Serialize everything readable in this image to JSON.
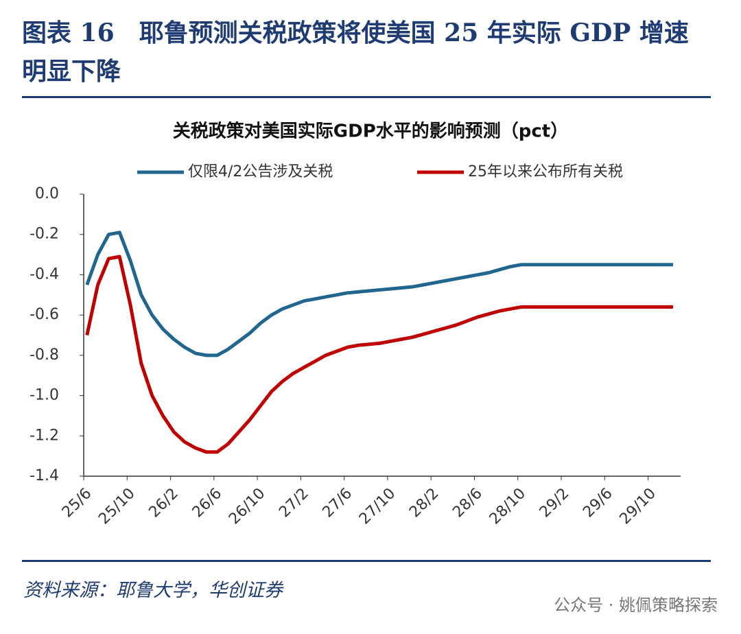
{
  "chart_data": {
    "type": "line",
    "header": "图表 16　耶鲁预测关税政策将使美国 25 年实际 GDP 增速明显下降",
    "title": "关税政策对美国实际GDP水平的影响预测（pct）",
    "source": "资料来源：耶鲁大学，华创证券",
    "watermark": "公众号 · 姚佩策略探索",
    "categories": [
      "25/6",
      null,
      null,
      null,
      "25/10",
      null,
      null,
      null,
      "26/2",
      null,
      null,
      null,
      "26/6",
      null,
      null,
      null,
      "26/10",
      null,
      null,
      null,
      "27/2",
      null,
      null,
      null,
      "27/6",
      null,
      null,
      null,
      "27/10",
      null,
      null,
      null,
      "28/2",
      null,
      null,
      null,
      "28/6",
      null,
      null,
      null,
      "28/10",
      null,
      null,
      null,
      "29/2",
      null,
      null,
      null,
      "29/6",
      null,
      null,
      null,
      "29/10",
      null,
      null
    ],
    "series": [
      {
        "name": "仅限4/2公告涉及关税",
        "color": "#21668f",
        "values": [
          -0.45,
          -0.3,
          -0.2,
          -0.19,
          -0.33,
          -0.5,
          -0.6,
          -0.67,
          -0.72,
          -0.76,
          -0.79,
          -0.8,
          -0.8,
          -0.77,
          -0.73,
          -0.69,
          -0.64,
          -0.6,
          -0.57,
          -0.55,
          -0.53,
          -0.52,
          -0.51,
          -0.5,
          -0.49,
          -0.485,
          -0.48,
          -0.475,
          -0.47,
          -0.465,
          -0.46,
          -0.45,
          -0.44,
          -0.43,
          -0.42,
          -0.41,
          -0.4,
          -0.39,
          -0.375,
          -0.36,
          -0.35,
          -0.35,
          -0.35,
          -0.35,
          -0.35,
          -0.35,
          -0.35,
          -0.35,
          -0.35,
          -0.35,
          -0.35,
          -0.35,
          -0.35,
          -0.35,
          -0.35
        ]
      },
      {
        "name": "25年以来公布所有关税",
        "color": "#c00000",
        "values": [
          -0.7,
          -0.45,
          -0.32,
          -0.31,
          -0.55,
          -0.84,
          -1.0,
          -1.1,
          -1.18,
          -1.23,
          -1.26,
          -1.28,
          -1.28,
          -1.24,
          -1.18,
          -1.12,
          -1.05,
          -0.98,
          -0.93,
          -0.89,
          -0.86,
          -0.83,
          -0.8,
          -0.78,
          -0.76,
          -0.75,
          -0.745,
          -0.74,
          -0.73,
          -0.72,
          -0.71,
          -0.695,
          -0.68,
          -0.665,
          -0.65,
          -0.63,
          -0.61,
          -0.595,
          -0.58,
          -0.57,
          -0.56,
          -0.56,
          -0.56,
          -0.56,
          -0.56,
          -0.56,
          -0.56,
          -0.56,
          -0.56,
          -0.56,
          -0.56,
          -0.56,
          -0.56,
          -0.56,
          -0.56
        ]
      }
    ],
    "ylim": [
      -1.4,
      0
    ],
    "yticks": [
      {
        "value": 0,
        "label": "0.0"
      },
      -0.2,
      -0.4,
      -0.6,
      -0.8,
      {
        "value": -1,
        "label": "-1.0"
      },
      -1.2,
      -1.4
    ],
    "legend": "top",
    "grid": false
  }
}
